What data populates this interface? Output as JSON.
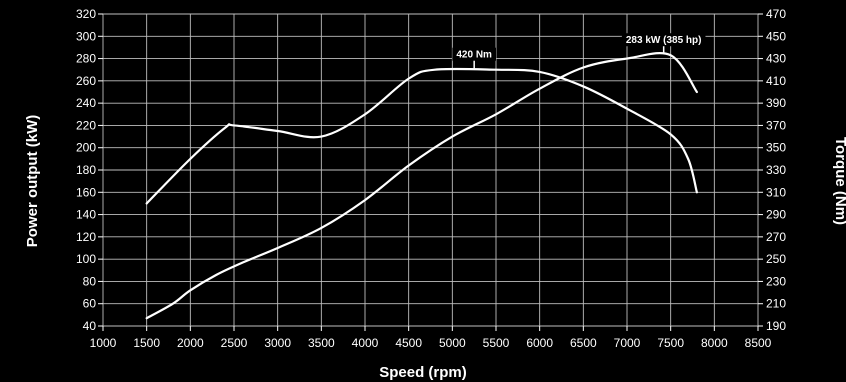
{
  "chart_data": {
    "type": "line",
    "title": "",
    "xlabel": "Speed (rpm)",
    "ylabel_left": "Power output (kW)",
    "ylabel_right": "Torque (Nm)",
    "xlim": [
      1000,
      8500
    ],
    "ylim_left": [
      40,
      320
    ],
    "ylim_right": [
      190,
      470
    ],
    "x_ticks": [
      1000,
      1500,
      2000,
      2500,
      3000,
      3500,
      4000,
      4500,
      5000,
      5500,
      6000,
      6500,
      7000,
      7500,
      8000,
      8500
    ],
    "y_left_ticks": [
      40,
      60,
      80,
      100,
      120,
      140,
      160,
      180,
      200,
      220,
      240,
      260,
      280,
      300,
      320
    ],
    "y_right_ticks": [
      190,
      210,
      230,
      250,
      270,
      290,
      310,
      330,
      350,
      370,
      390,
      410,
      430,
      450,
      470
    ],
    "grid": true,
    "line_color": "#ffffff",
    "background_color": "#000000",
    "series": [
      {
        "axis": "left",
        "x": [
          1500,
          1800,
          2000,
          2300,
          2600,
          3000,
          3500,
          4000,
          4500,
          5000,
          5500,
          6000,
          6500,
          7000,
          7500,
          7800
        ],
        "y": [
          47,
          60,
          72,
          86,
          97,
          110,
          128,
          153,
          184,
          210,
          230,
          253,
          272,
          280,
          283,
          250
        ]
      },
      {
        "axis": "right",
        "x": [
          1500,
          2000,
          2400,
          2500,
          3000,
          3500,
          4000,
          4500,
          4800,
          5500,
          6000,
          6500,
          7000,
          7500,
          7700,
          7800
        ],
        "y": [
          300,
          340,
          368,
          370,
          365,
          360,
          380,
          412,
          420,
          420,
          418,
          405,
          385,
          362,
          340,
          310
        ]
      }
    ],
    "annotations": [
      {
        "text": "420 Nm",
        "x": 5250,
        "axis": "right",
        "y": 420
      },
      {
        "text": "283 kW (385 hp)",
        "x": 7420,
        "axis": "left",
        "y": 283
      }
    ]
  }
}
